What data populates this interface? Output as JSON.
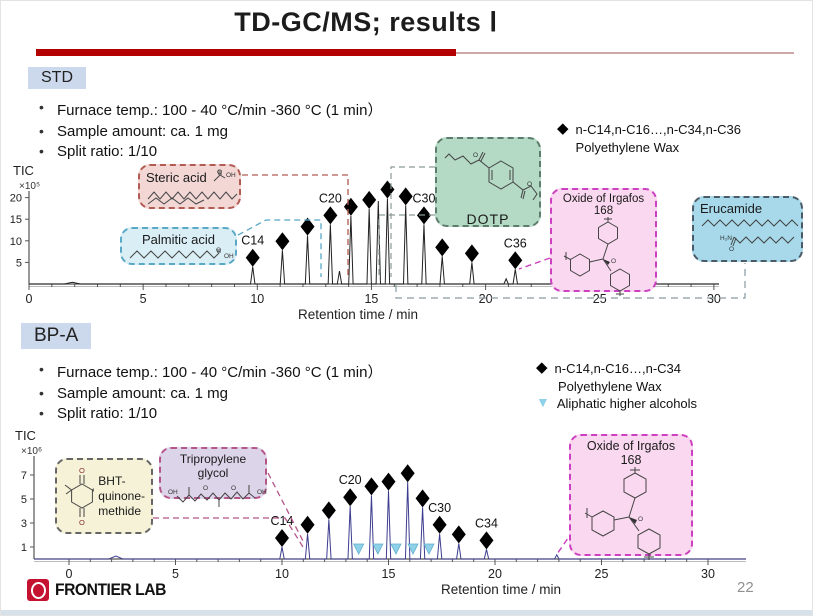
{
  "title": "TD-GC/MS; results Ⅰ",
  "page_number": "22",
  "footer_logo_text": "FRONTIER LAB",
  "std": {
    "label": "STD",
    "bullets": [
      "Furnace temp.:  100 - 40 °C/min -360 °C (1 min）",
      "Sample amount: ca. 1 mg",
      "Split ratio: 1/10"
    ],
    "legend": {
      "marker_glyph": "◆",
      "line1": "n-C14,n-C16…,n-C34,n-C36",
      "line2": "Polyethylene Wax"
    }
  },
  "bpa": {
    "label": "BP-A",
    "bullets": [
      "Furnace temp.:  100 - 40 °C/min -360 °C (1 min）",
      "Sample amount: ca. 1 mg",
      "Split ratio: 1/10"
    ],
    "legend": {
      "marker_glyph": "◆",
      "line1": "n-C14,n-C16…,n-C34",
      "line2": "Polyethylene Wax",
      "marker2_glyph": "▼",
      "line3": "Aliphatic higher alcohols"
    }
  },
  "callouts": {
    "steric": "Steric acid",
    "palmitic": "Palmitic acid",
    "dotp": "DOTP",
    "irgafos_top": "Oxide of Irgafos 168",
    "erucamide": "Erucamide",
    "bht": "BHT-quinone-methide",
    "tripropylene": "Tripropylene glycol",
    "irgafos_bottom": "Oxide of Irgafos 168"
  },
  "structure_labels": {
    "oh": "OH",
    "o": "O",
    "h2n": "H₂N"
  },
  "colors": {
    "accent_red": "#b30000",
    "header_bg": "#ccd9ed",
    "std_trace": "#222222",
    "bpa_trace": "#3d3d8f",
    "diamond": "#000000",
    "triangle": "#8ed1e8"
  },
  "chart_data": [
    {
      "type": "line",
      "name": "STD chromatogram (TIC)",
      "ylabel": "TIC",
      "y_scale": "×10⁵",
      "xlabel": "Retention time / min",
      "xlim": [
        0,
        30
      ],
      "ylim": [
        0,
        22
      ],
      "x_ticks": [
        0,
        5,
        10,
        15,
        20,
        25,
        30
      ],
      "y_ticks": [
        5,
        10,
        15,
        20
      ],
      "trace_color": "#222222",
      "peaks": [
        {
          "t": 1.9,
          "h": 0.4,
          "w": 8
        },
        {
          "t": 9.8,
          "h": 4.0,
          "marker": "diamond",
          "label": "C14"
        },
        {
          "t": 11.1,
          "h": 7.8,
          "marker": "diamond"
        },
        {
          "t": 12.2,
          "h": 11.2,
          "marker": "diamond"
        },
        {
          "t": 13.2,
          "h": 13.8,
          "marker": "diamond",
          "label": "C20"
        },
        {
          "t": 13.6,
          "h": 3.0
        },
        {
          "t": 14.1,
          "h": 15.8,
          "marker": "diamond"
        },
        {
          "t": 14.9,
          "h": 17.4,
          "marker": "diamond"
        },
        {
          "t": 15.3,
          "h": 19.2
        },
        {
          "t": 15.7,
          "h": 19.8,
          "marker": "diamond"
        },
        {
          "t": 16.5,
          "h": 18.2,
          "marker": "diamond"
        },
        {
          "t": 17.3,
          "h": 13.8,
          "marker": "diamond",
          "label": "C30"
        },
        {
          "t": 18.1,
          "h": 6.4,
          "marker": "diamond"
        },
        {
          "t": 19.4,
          "h": 5.0,
          "marker": "diamond"
        },
        {
          "t": 20.9,
          "h": 1.2
        },
        {
          "t": 21.3,
          "h": 3.4,
          "marker": "diamond",
          "label": "C36"
        }
      ],
      "triangle_markers": []
    },
    {
      "type": "line",
      "name": "BP-A chromatogram (TIC)",
      "ylabel": "TIC",
      "y_scale": "×10⁶",
      "xlabel": "Retention time / min",
      "xlim": [
        0,
        30
      ],
      "ylim": [
        0,
        8
      ],
      "x_ticks": [
        0,
        5,
        10,
        15,
        20,
        25,
        30
      ],
      "y_ticks": [
        1,
        3,
        5,
        7
      ],
      "trace_color": "#3d3d8f",
      "peaks": [
        {
          "t": 2.2,
          "h": 0.25,
          "w": 7
        },
        {
          "t": 10.0,
          "h": 1.0,
          "marker": "diamond",
          "label": "C14"
        },
        {
          "t": 11.2,
          "h": 2.1,
          "marker": "diamond"
        },
        {
          "t": 12.2,
          "h": 3.3,
          "marker": "diamond"
        },
        {
          "t": 13.2,
          "h": 4.4,
          "marker": "diamond",
          "label": "C20"
        },
        {
          "t": 14.2,
          "h": 5.3,
          "marker": "diamond"
        },
        {
          "t": 15.0,
          "h": 5.7,
          "marker": "diamond"
        },
        {
          "t": 15.9,
          "h": 6.4,
          "marker": "diamond"
        },
        {
          "t": 16.6,
          "h": 4.3,
          "marker": "diamond"
        },
        {
          "t": 17.4,
          "h": 2.1,
          "marker": "diamond",
          "label": "C30"
        },
        {
          "t": 18.3,
          "h": 1.3,
          "marker": "diamond"
        },
        {
          "t": 19.6,
          "h": 0.8,
          "marker": "diamond",
          "label": "C34"
        },
        {
          "t": 22.9,
          "h": 0.35
        }
      ],
      "triangle_markers": [
        {
          "t": 13.6
        },
        {
          "t": 14.5
        },
        {
          "t": 15.35
        },
        {
          "t": 16.15
        },
        {
          "t": 16.9
        }
      ]
    }
  ]
}
